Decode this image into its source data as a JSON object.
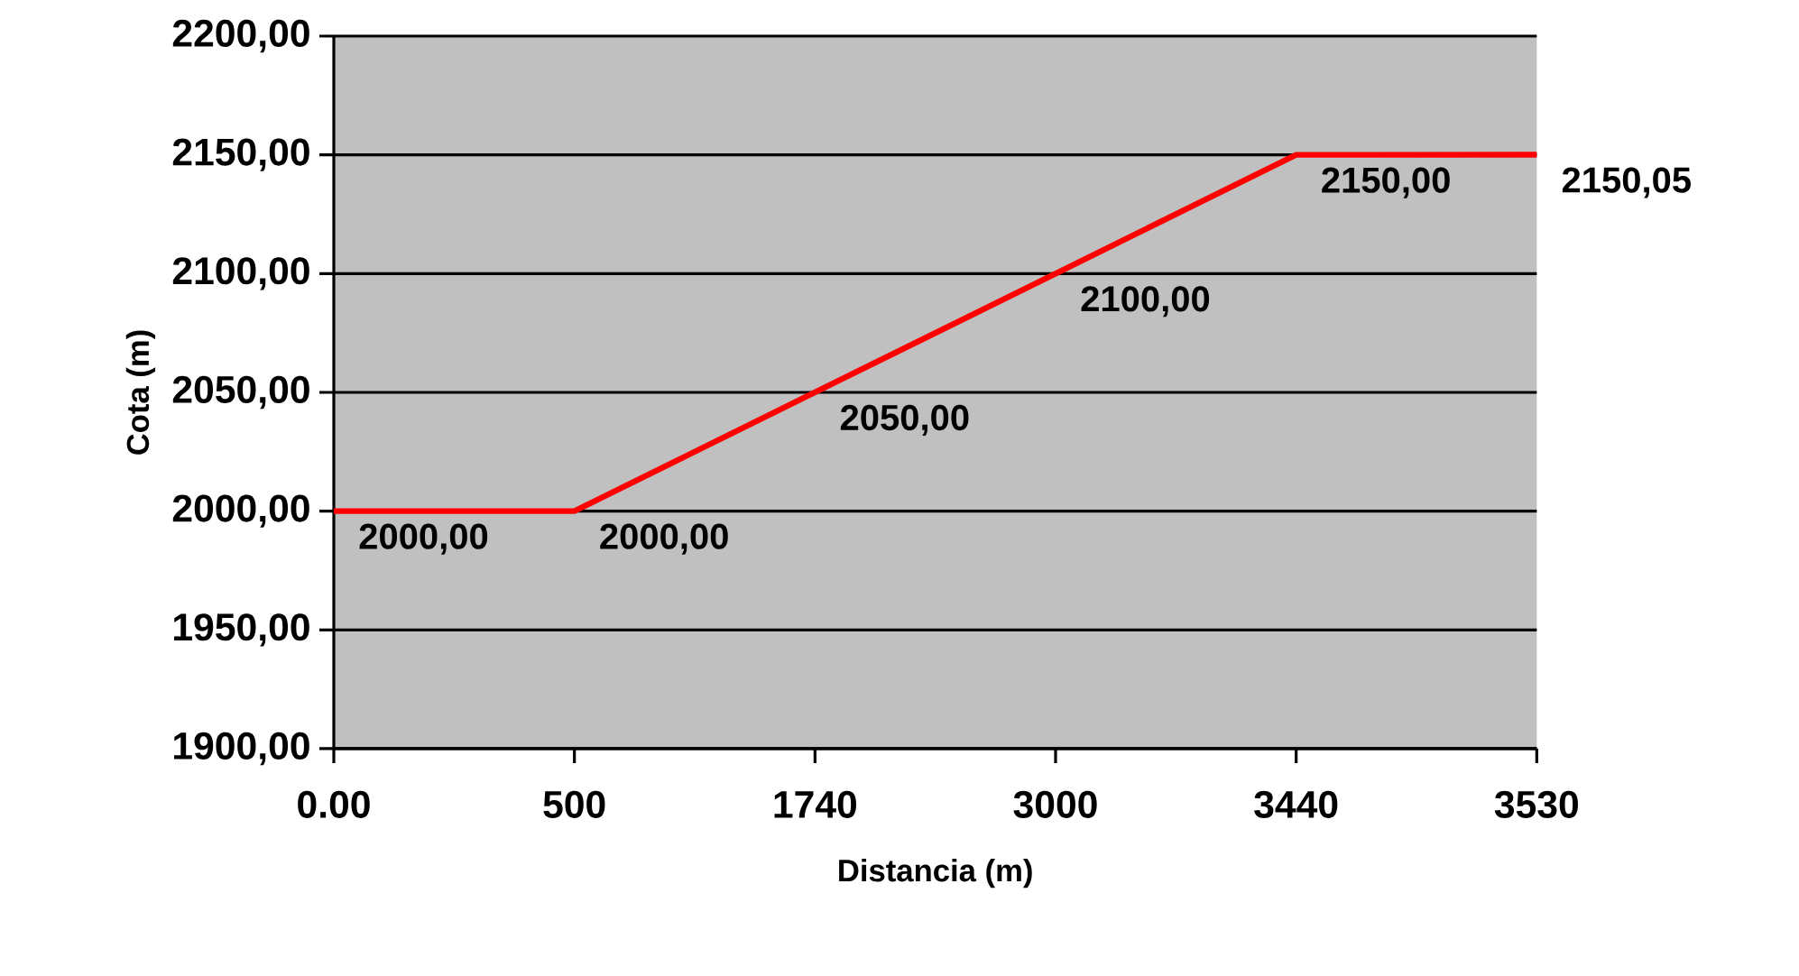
{
  "chart_data": {
    "type": "line",
    "xlabel": "Distancia (m)",
    "ylabel": "Cota (m)",
    "categories": [
      "0.00",
      "500",
      "1740",
      "3000",
      "3440",
      "3530"
    ],
    "series": [
      {
        "color": "#ff0000",
        "values": [
          2000,
          2000,
          2050,
          2100,
          2150,
          2150.05
        ],
        "value_labels": [
          "2000,00",
          "2000,00",
          "2050,00",
          "2100,00",
          "2150,00",
          "2150,05"
        ]
      }
    ],
    "ylim": [
      1900,
      2200
    ],
    "yticks": [
      {
        "value": 1900,
        "label": "1900,00"
      },
      {
        "value": 1950,
        "label": "1950,00"
      },
      {
        "value": 2000,
        "label": "2000,00"
      },
      {
        "value": 2050,
        "label": "2050,00"
      },
      {
        "value": 2100,
        "label": "2100,00"
      },
      {
        "value": 2150,
        "label": "2150,00"
      },
      {
        "value": 2200,
        "label": "2200,00"
      }
    ],
    "grid": "y",
    "marker": "none",
    "line_style": "solid"
  }
}
